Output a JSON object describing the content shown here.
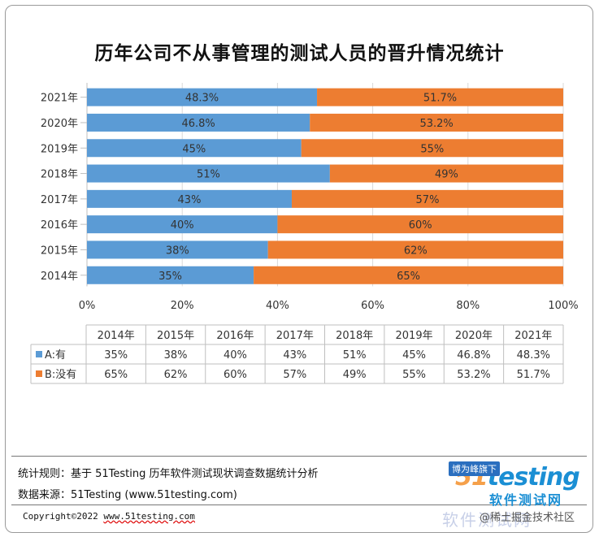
{
  "chart_data": {
    "type": "bar",
    "orientation": "horizontal",
    "stacked": "percent",
    "title": "历年公司不从事管理的测试人员的晋升情况统计",
    "categories": [
      "2021年",
      "2020年",
      "2019年",
      "2018年",
      "2017年",
      "2016年",
      "2015年",
      "2014年"
    ],
    "series": [
      {
        "name": "A:有",
        "color": "#5b9bd5",
        "values": [
          48.3,
          46.8,
          45,
          51,
          43,
          40,
          38,
          35
        ],
        "labels": [
          "48.3%",
          "46.8%",
          "45%",
          "51%",
          "43%",
          "40%",
          "38%",
          "35%"
        ]
      },
      {
        "name": "B:没有",
        "color": "#ed7d31",
        "values": [
          51.7,
          53.2,
          55,
          49,
          57,
          60,
          62,
          65
        ],
        "labels": [
          "51.7%",
          "53.2%",
          "55%",
          "49%",
          "57%",
          "60%",
          "62%",
          "65%"
        ]
      }
    ],
    "xlim": [
      0,
      100
    ],
    "xticks": [
      "0%",
      "20%",
      "40%",
      "60%",
      "80%",
      "100%"
    ],
    "grid": true,
    "data_table": {
      "columns": [
        "2014年",
        "2015年",
        "2016年",
        "2017年",
        "2018年",
        "2019年",
        "2020年",
        "2021年"
      ],
      "rows": [
        {
          "name": "A:有",
          "values": [
            "35%",
            "38%",
            "40%",
            "43%",
            "51%",
            "45%",
            "46.8%",
            "48.3%"
          ]
        },
        {
          "name": "B:没有",
          "values": [
            "65%",
            "62%",
            "60%",
            "57%",
            "49%",
            "55%",
            "53.2%",
            "51.7%"
          ]
        }
      ]
    }
  },
  "footer": {
    "rule_text": "统计规则：基于 51Testing 历年软件测试现状调查数据统计分析",
    "source_text": "数据来源：51Testing (www.51testing.com)",
    "copyright_prefix": "Copyright©2022 ",
    "copyright_url": "www.51testing.com"
  },
  "brand": {
    "tag": "博为峰旗下",
    "logo_num": "51",
    "logo_word": "testing",
    "sub": "软件测试网",
    "big": "软件测试网",
    "juejin": "@稀土掘金技术社区"
  }
}
